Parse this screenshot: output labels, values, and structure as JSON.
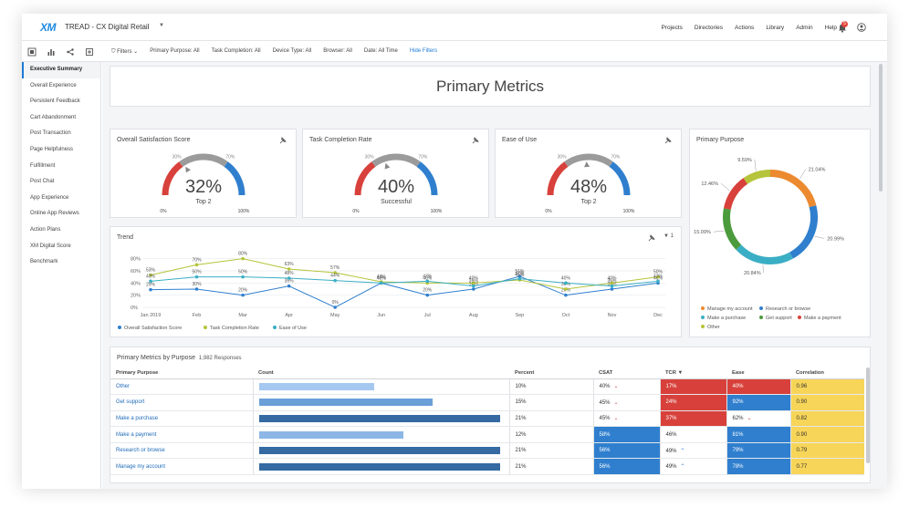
{
  "app": {
    "logo": "XM",
    "project_title": "TREAD - CX Digital Retail",
    "nav": [
      "Projects",
      "Directories",
      "Actions",
      "Library",
      "Admin",
      "Help"
    ],
    "notification_count": "5"
  },
  "filters": {
    "label": "Filters",
    "items": [
      "Primary Purpose:  All",
      "Task Completion:  All",
      "Device Type:  All",
      "Browser:  All",
      "Date: All Time"
    ],
    "hide_label": "Hide Filters"
  },
  "sidebar": {
    "items": [
      "Executive Summary",
      "Overall Experience",
      "Persistent Feedback",
      "Cart Abandonment",
      "Post Transaction",
      "Page Helpfulness",
      "Fulfillment",
      "Post Chat",
      "App Experience",
      "Online App Reviews",
      "Action Plans",
      "XM Digital Score",
      "Benchmark"
    ],
    "active_index": 0
  },
  "primary_metrics": {
    "title": "Primary Metrics"
  },
  "gauges": [
    {
      "title": "Overall Satisfaction Score",
      "value": "32%",
      "fraction": 0.32,
      "sub": "Top 2",
      "min": "0%",
      "max": "100%",
      "t1": "30%",
      "t2": "70%"
    },
    {
      "title": "Task Completion Rate",
      "value": "40%",
      "fraction": 0.4,
      "sub": "Successful",
      "min": "0%",
      "max": "100%",
      "t1": "30%",
      "t2": "70%"
    },
    {
      "title": "Ease of Use",
      "value": "48%",
      "fraction": 0.48,
      "sub": "Top 2",
      "min": "0%",
      "max": "100%",
      "t1": "30%",
      "t2": "70%"
    }
  ],
  "trend": {
    "title": "Trend",
    "filter_count": "1"
  },
  "chart_data": [
    {
      "type": "line",
      "title": "Trend",
      "categories": [
        "Jan 2019",
        "Feb",
        "Mar",
        "Apr",
        "May",
        "Jun",
        "Jul",
        "Aug",
        "Sep",
        "Oct",
        "Nov",
        "Dec"
      ],
      "y_ticks": [
        "0%",
        "20%",
        "40%",
        "60%",
        "80%"
      ],
      "ylim": [
        0,
        90
      ],
      "legend_position": "bottom-left",
      "series": [
        {
          "name": "Overall Satisfaction Score",
          "color": "#2f7fce",
          "values": [
            29,
            30,
            20,
            35,
            0,
            40,
            20,
            30,
            51,
            20,
            30,
            40
          ],
          "labels": [
            "29%",
            "30%",
            "20%",
            "35%",
            "0%",
            "40%",
            "20%",
            "30%",
            "51%",
            "20%",
            "30%",
            "40%"
          ]
        },
        {
          "name": "Task Completion Rate",
          "color": "#b5c43a",
          "values": [
            53,
            70,
            80,
            63,
            57,
            42,
            40,
            40,
            45,
            30,
            40,
            50
          ],
          "labels": [
            "53%",
            "70%",
            "80%",
            "63%",
            "57%",
            "42%",
            "40%",
            "40%",
            "45%",
            "30%",
            "40%",
            "50%"
          ]
        },
        {
          "name": "Ease of Use",
          "color": "#3aaec4",
          "values": [
            43,
            50,
            50,
            48,
            44,
            40,
            43,
            35,
            47,
            40,
            35,
            43
          ],
          "labels": [
            "43%",
            "50%",
            "50%",
            "48%",
            "44%",
            "40%",
            "43%",
            "35%",
            "47%",
            "40%",
            "35%",
            "43%"
          ]
        }
      ]
    },
    {
      "type": "pie",
      "title": "Primary Purpose",
      "donut": true,
      "categories": [
        "Manage my account",
        "Research or browse",
        "Make a purchase",
        "Get support",
        "Make a payment",
        "Other"
      ],
      "values": [
        21.04,
        20.99,
        20.84,
        15.09,
        12.46,
        9.59
      ],
      "labels": [
        "21.04%",
        "20.99%",
        "20.84%",
        "15.09%",
        "12.46%",
        "9.59%"
      ],
      "colors": [
        "#ec8a2f",
        "#2f7fce",
        "#3aaec4",
        "#4b9a3c",
        "#d8413b",
        "#b5c43a"
      ],
      "legend_position": "bottom"
    }
  ],
  "metrics_table": {
    "title": "Primary Metrics by Purpose",
    "responses": "1,982 Responses",
    "headers": [
      "Primary Purpose",
      "Count",
      "Percent",
      "CSAT",
      "TCR ▼",
      "Ease",
      "Correlation"
    ],
    "rows": [
      {
        "purpose": "Other",
        "count": 0.48,
        "bar_color": "#a5c8f0",
        "percent": "10%",
        "csat": "40%",
        "csat_trend": "down",
        "csat_color": "",
        "tcr": "17%",
        "tcr_trend": "",
        "tcr_color": "c-red",
        "ease": "40%",
        "ease_trend": "",
        "ease_color": "c-red",
        "corr": "0.96"
      },
      {
        "purpose": "Get support",
        "count": 0.72,
        "bar_color": "#6a9fd8",
        "percent": "15%",
        "csat": "45%",
        "csat_trend": "down",
        "csat_color": "",
        "tcr": "24%",
        "tcr_trend": "",
        "tcr_color": "c-red",
        "ease": "92%",
        "ease_trend": "",
        "ease_color": "c-blue",
        "corr": "0.90"
      },
      {
        "purpose": "Make a purchase",
        "count": 1.0,
        "bar_color": "#356aa3",
        "percent": "21%",
        "csat": "45%",
        "csat_trend": "down",
        "csat_color": "",
        "tcr": "37%",
        "tcr_trend": "",
        "tcr_color": "c-red",
        "ease": "62%",
        "ease_trend": "down",
        "ease_color": "",
        "corr": "0.82"
      },
      {
        "purpose": "Make a payment",
        "count": 0.6,
        "bar_color": "#8cb6e6",
        "percent": "12%",
        "csat": "58%",
        "csat_trend": "",
        "csat_color": "c-blue",
        "tcr": "46%",
        "tcr_trend": "",
        "tcr_color": "",
        "ease": "81%",
        "ease_trend": "",
        "ease_color": "c-blue",
        "corr": "0.90"
      },
      {
        "purpose": "Research or browse",
        "count": 1.0,
        "bar_color": "#356aa3",
        "percent": "21%",
        "csat": "56%",
        "csat_trend": "",
        "csat_color": "c-blue",
        "tcr": "49%",
        "tcr_trend": "up",
        "tcr_color": "",
        "ease": "79%",
        "ease_trend": "",
        "ease_color": "c-blue",
        "corr": "0.79"
      },
      {
        "purpose": "Manage my account",
        "count": 1.0,
        "bar_color": "#356aa3",
        "percent": "21%",
        "csat": "56%",
        "csat_trend": "",
        "csat_color": "c-blue",
        "tcr": "49%",
        "tcr_trend": "up",
        "tcr_color": "",
        "ease": "78%",
        "ease_trend": "",
        "ease_color": "c-blue",
        "corr": "0.77"
      }
    ]
  },
  "colors": {
    "accent": "#1f7ad6",
    "gauge_red": "#d8413b",
    "gauge_grey": "#9b9b9b",
    "gauge_blue": "#2f7fce"
  },
  "icons": [
    "bell-icon",
    "user-icon",
    "filter-icon",
    "pin-icon",
    "grid-view-icon",
    "chart-view-icon",
    "share-icon",
    "export-icon"
  ]
}
